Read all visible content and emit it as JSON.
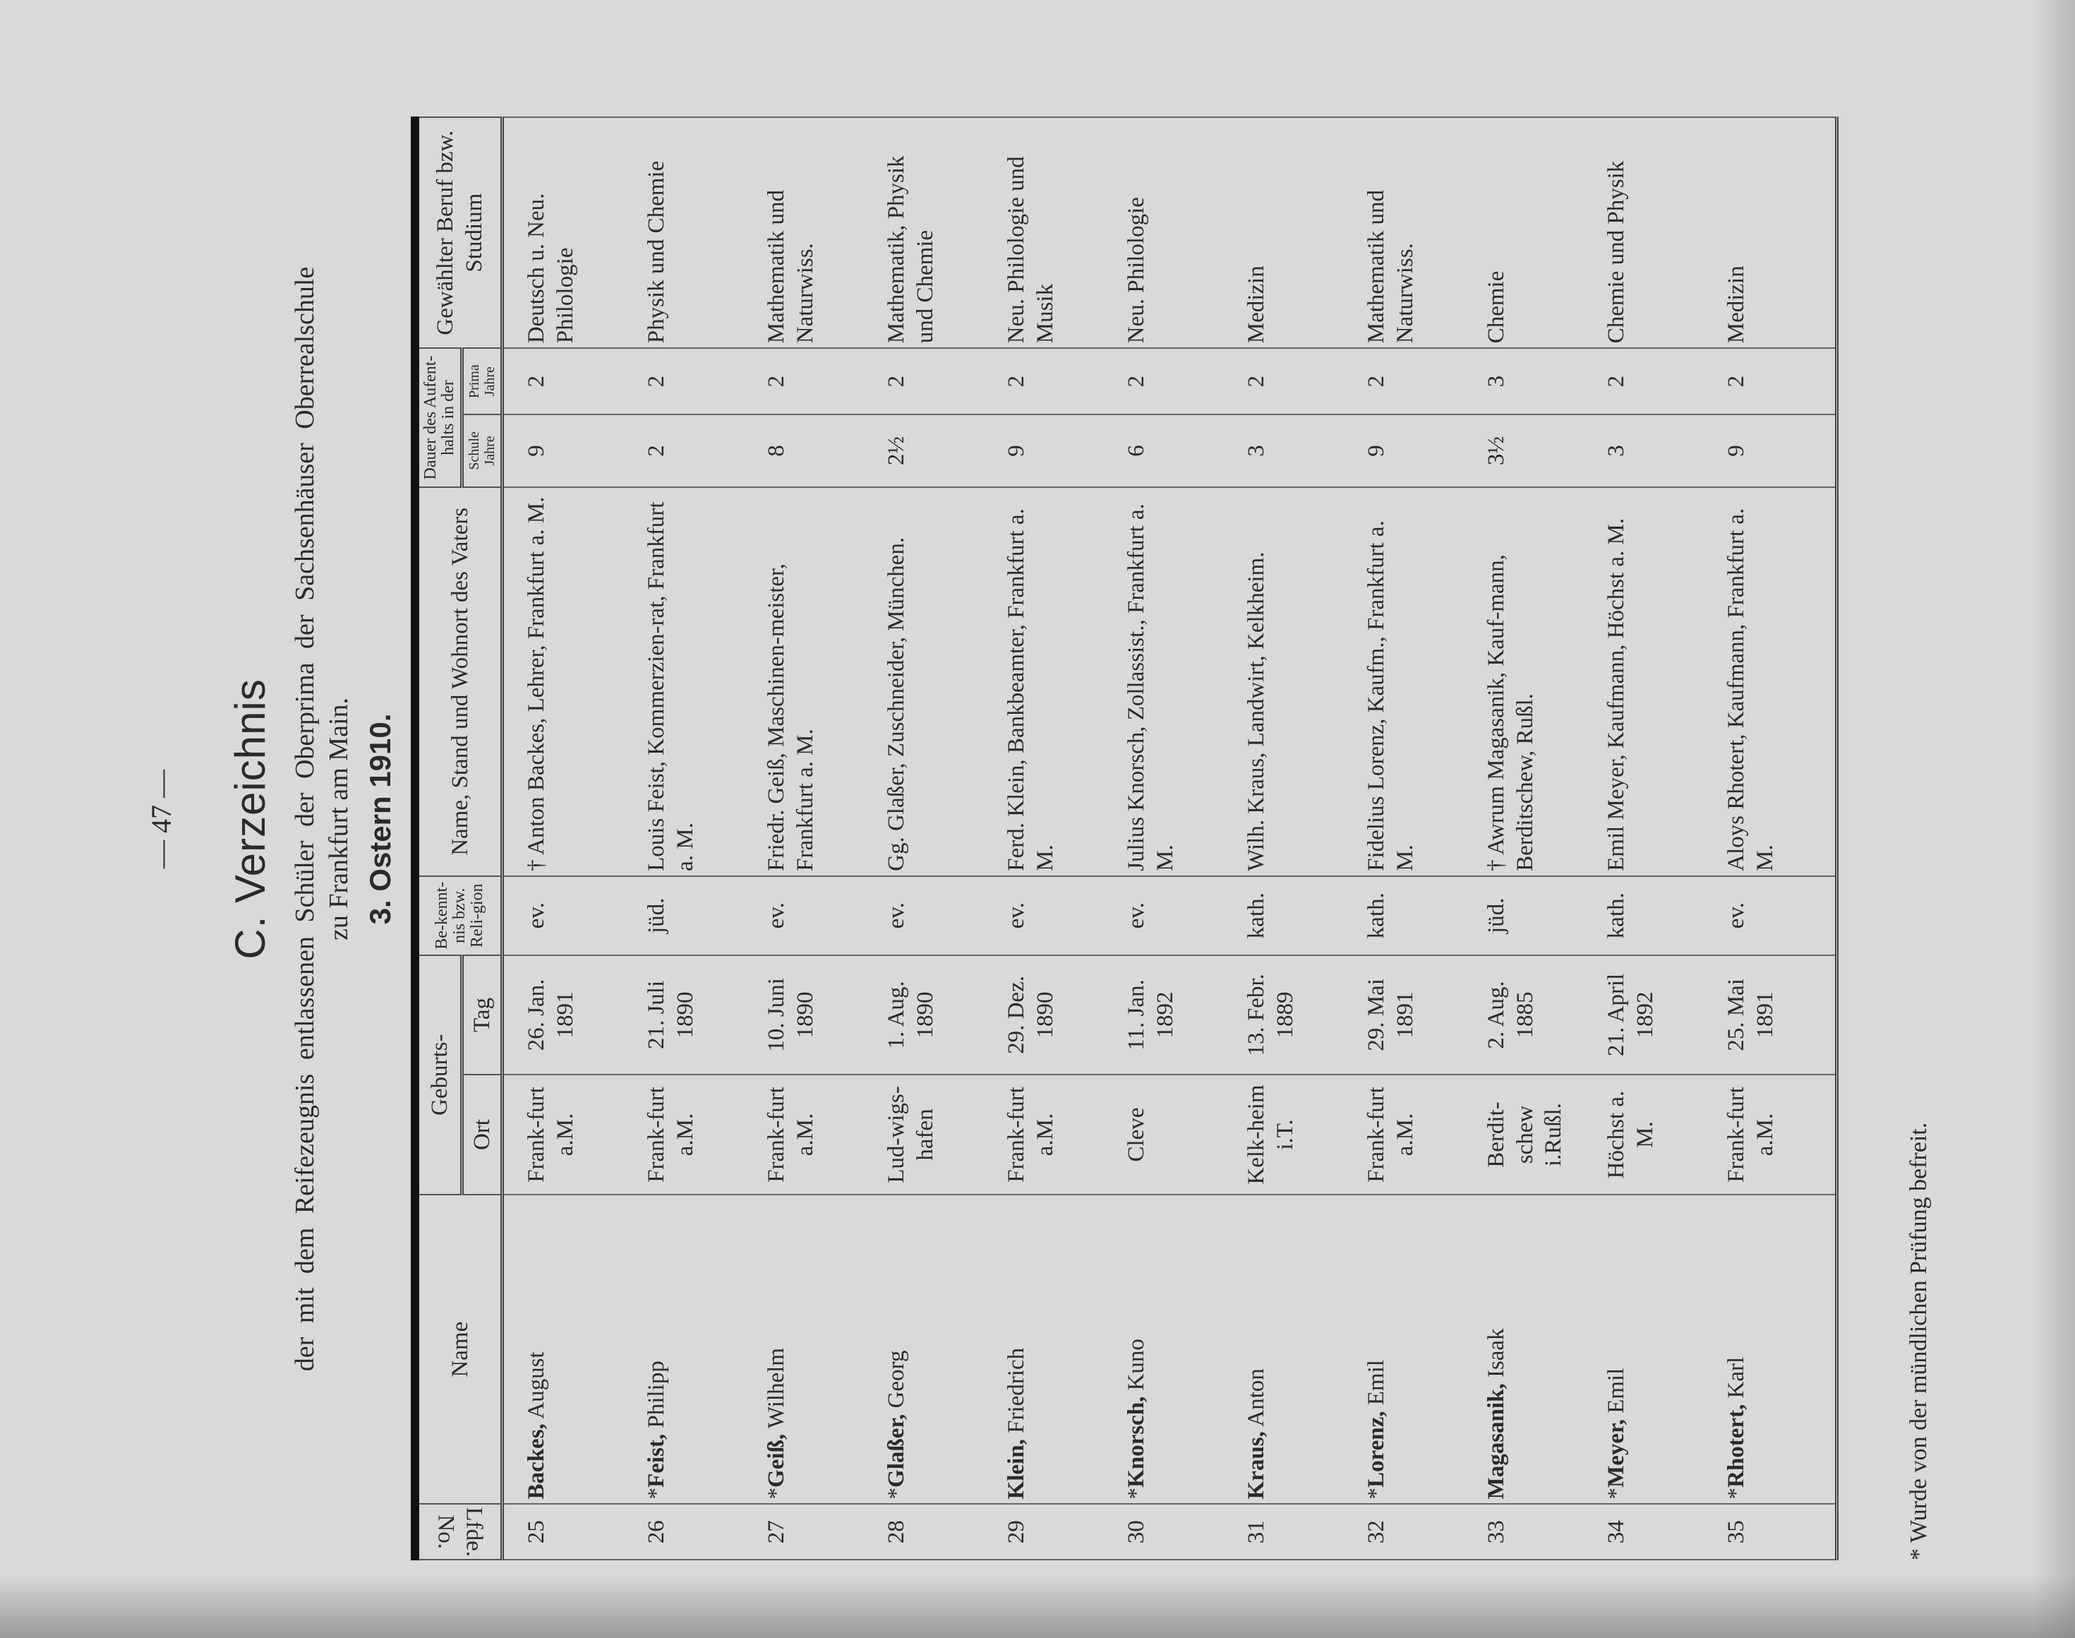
{
  "page_number": "— 47 —",
  "heading": {
    "title": "C. Verzeichnis",
    "line1": "der mit dem Reifezeugnis entlassenen Schüler der Oberprima der Sachsenhäuser Oberrealschule",
    "line2": "zu Frankfurt am Main.",
    "section": "3. Ostern 1910."
  },
  "columns": {
    "lfde": "Lfde. No.",
    "name": "Name",
    "geburts": "Geburts-",
    "ort": "Ort",
    "tag": "Tag",
    "religion": "Be-kennt-nis bzw. Reli-gion",
    "vater": "Name, Stand und Wohnort des Vaters",
    "dauer": "Dauer des Aufent-halts in der",
    "schule": "Schule Jahre",
    "prima": "Prima Jahre",
    "beruf": "Gewählter Beruf bzw. Studium"
  },
  "rows": [
    {
      "no": "25",
      "star": "",
      "surname": "Backes,",
      "given": "August",
      "ort": "Frank-furt a.M.",
      "tag": "26. Jan. 1891",
      "religion": "ev.",
      "vater": "† Anton Backes, Lehrer, Frankfurt a. M.",
      "schule": "9",
      "prima": "2",
      "beruf": "Deutsch u. Neu. Philologie"
    },
    {
      "no": "26",
      "star": "*",
      "surname": "Feist,",
      "given": "Philipp",
      "ort": "Frank-furt a.M.",
      "tag": "21. Juli 1890",
      "religion": "jüd.",
      "vater": "Louis Feist, Kommerzien-rat, Frankfurt a. M.",
      "schule": "2",
      "prima": "2",
      "beruf": "Physik und Chemie"
    },
    {
      "no": "27",
      "star": "*",
      "surname": "Geiß,",
      "given": "Wilhelm",
      "ort": "Frank-furt a.M.",
      "tag": "10. Juni 1890",
      "religion": "ev.",
      "vater": "Friedr. Geiß, Maschinen-meister, Frankfurt a. M.",
      "schule": "8",
      "prima": "2",
      "beruf": "Mathematik und Naturwiss."
    },
    {
      "no": "28",
      "star": "*",
      "surname": "Glaßer,",
      "given": "Georg",
      "ort": "Lud-wigs-hafen",
      "tag": "1. Aug. 1890",
      "religion": "ev.",
      "vater": "Gg. Glaßer, Zuschneider, München.",
      "schule": "2½",
      "prima": "2",
      "beruf": "Mathematik, Physik und Chemie"
    },
    {
      "no": "29",
      "star": "",
      "surname": "Klein,",
      "given": "Friedrich",
      "ort": "Frank-furt a.M.",
      "tag": "29. Dez. 1890",
      "religion": "ev.",
      "vater": "Ferd. Klein, Bankbeamter, Frankfurt a. M.",
      "schule": "9",
      "prima": "2",
      "beruf": "Neu. Philologie und Musik"
    },
    {
      "no": "30",
      "star": "*",
      "surname": "Knorsch,",
      "given": "Kuno",
      "ort": "Cleve",
      "tag": "11. Jan. 1892",
      "religion": "ev.",
      "vater": "Julius Knorsch, Zollassist., Frankfurt a. M.",
      "schule": "6",
      "prima": "2",
      "beruf": "Neu. Philologie"
    },
    {
      "no": "31",
      "star": "",
      "surname": "Kraus,",
      "given": "Anton",
      "ort": "Kelk-heim i.T.",
      "tag": "13. Febr. 1889",
      "religion": "kath.",
      "vater": "Wilh. Kraus, Landwirt, Kelkheim.",
      "schule": "3",
      "prima": "2",
      "beruf": "Medizin"
    },
    {
      "no": "32",
      "star": "*",
      "surname": "Lorenz,",
      "given": "Emil",
      "ort": "Frank-furt a.M.",
      "tag": "29. Mai 1891",
      "religion": "kath.",
      "vater": "Fidelius Lorenz, Kaufm., Frankfurt a. M.",
      "schule": "9",
      "prima": "2",
      "beruf": "Mathematik und Naturwiss."
    },
    {
      "no": "33",
      "star": "",
      "surname": "Magasanik,",
      "given": "Isaak",
      "ort": "Berdit-schew i.Rußl.",
      "tag": "2. Aug. 1885",
      "religion": "jüd.",
      "vater": "† Awrum Magasanik, Kauf-mann, Berditschew, Rußl.",
      "schule": "3½",
      "prima": "3",
      "beruf": "Chemie"
    },
    {
      "no": "34",
      "star": "*",
      "surname": "Meyer,",
      "given": "Emil",
      "ort": "Höchst a. M.",
      "tag": "21. April 1892",
      "religion": "kath.",
      "vater": "Emil Meyer, Kaufmann, Höchst a. M.",
      "schule": "3",
      "prima": "2",
      "beruf": "Chemie und Physik"
    },
    {
      "no": "35",
      "star": "*",
      "surname": "Rhotert,",
      "given": "Karl",
      "ort": "Frank-furt a.M.",
      "tag": "25. Mai 1891",
      "religion": "ev.",
      "vater": "Aloys Rhotert, Kaufmann, Frankfurt a. M.",
      "schule": "9",
      "prima": "2",
      "beruf": "Medizin"
    }
  ],
  "footnote": "* Wurde von der mündlichen Prüfung befreit."
}
